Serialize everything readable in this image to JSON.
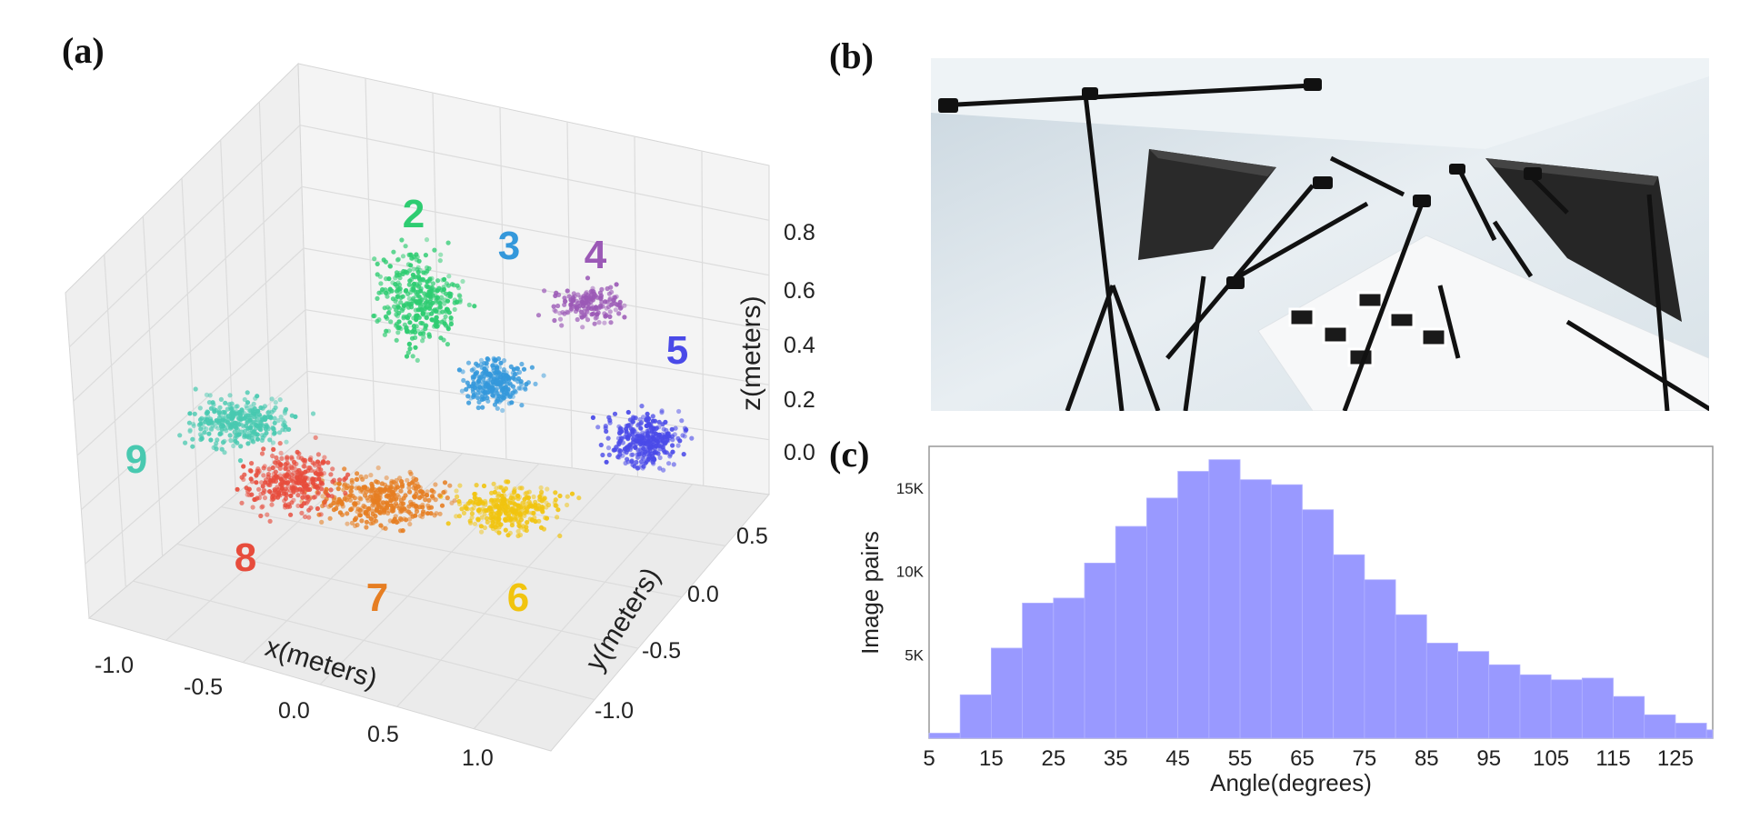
{
  "panels": {
    "a": "(a)",
    "b": "(b)",
    "c": "(c)"
  },
  "scatter3d": {
    "xlabel": "x(meters)",
    "ylabel": "y(meters)",
    "zlabel": "z(meters)",
    "x_ticks": [
      "-1.0",
      "-0.5",
      "0.0",
      "0.5",
      "1.0"
    ],
    "y_ticks": [
      "0.5",
      "0.0",
      "-0.5",
      "-1.0"
    ],
    "z_ticks": [
      "0.8",
      "0.6",
      "0.4",
      "0.2",
      "0.0"
    ],
    "clusters": [
      {
        "label": "2",
        "color": "#2ecc71"
      },
      {
        "label": "3",
        "color": "#3498db"
      },
      {
        "label": "4",
        "color": "#9b59b6"
      },
      {
        "label": "5",
        "color": "#4a4ae8"
      },
      {
        "label": "6",
        "color": "#f1c40f"
      },
      {
        "label": "7",
        "color": "#e67e22"
      },
      {
        "label": "8",
        "color": "#e74c3c"
      },
      {
        "label": "9",
        "color": "#48c9b0"
      }
    ]
  },
  "chart_data": {
    "type": "bar",
    "title": "",
    "xlabel": "Angle(degrees)",
    "ylabel": "Image pairs",
    "color": "#9999ff",
    "categories": [
      "5",
      "10",
      "15",
      "20",
      "25",
      "30",
      "35",
      "40",
      "45",
      "50",
      "55",
      "60",
      "65",
      "70",
      "75",
      "80",
      "85",
      "90",
      "95",
      "100",
      "105",
      "110",
      "115",
      "120",
      "125",
      "130"
    ],
    "values": [
      300,
      2600,
      5400,
      8100,
      8400,
      10500,
      12700,
      14400,
      16000,
      16700,
      15500,
      15200,
      13700,
      11000,
      9500,
      7400,
      5700,
      5200,
      4400,
      3800,
      3500,
      3600,
      2500,
      1400,
      900,
      500
    ],
    "x_ticks": [
      "5",
      "15",
      "25",
      "35",
      "45",
      "55",
      "65",
      "75",
      "85",
      "95",
      "105",
      "115",
      "125"
    ],
    "y_ticks": [
      "5K",
      "10K",
      "15K"
    ],
    "ylim": [
      0,
      17500
    ],
    "xlim": [
      5,
      131
    ]
  }
}
